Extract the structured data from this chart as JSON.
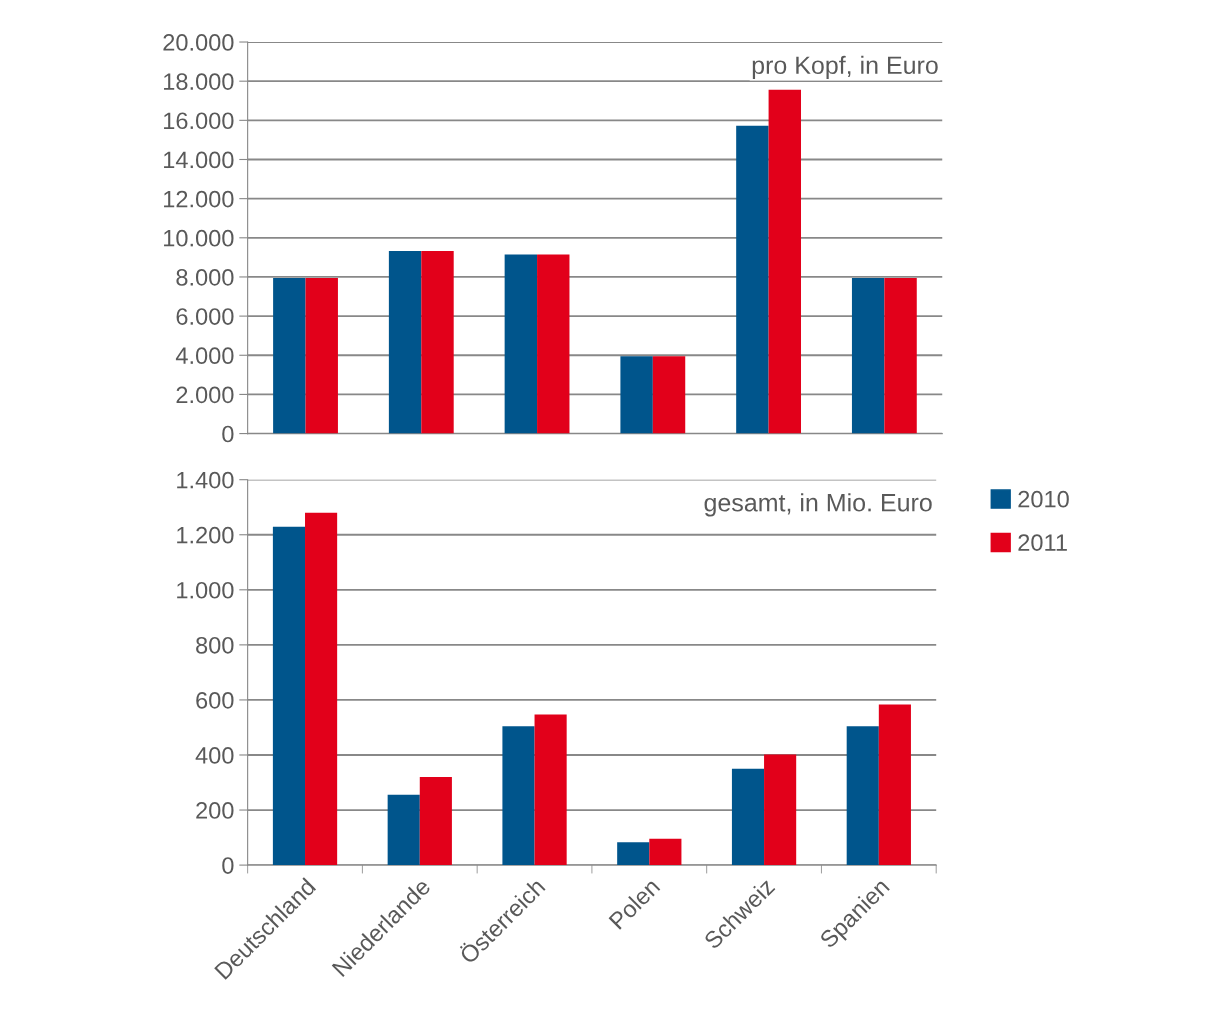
{
  "chart_data": [
    {
      "type": "bar",
      "categories": [
        null,
        null,
        null,
        null,
        null,
        null
      ],
      "series": [
        {
          "name": "2010",
          "color": "#00558c",
          "values": [
            7950,
            9330,
            9150,
            3950,
            15720,
            7950
          ]
        },
        {
          "name": "2011",
          "color": "#e2001a",
          "values": [
            7950,
            9330,
            9150,
            3950,
            17560,
            7950
          ]
        }
      ],
      "annotations": [
        "pro Kopf, in Euro"
      ],
      "ylim": [
        0,
        20000
      ],
      "yticks": [
        0,
        {
          "value": 2000,
          "label": "2.000"
        },
        {
          "value": 4000,
          "label": "4.000"
        },
        {
          "value": 6000,
          "label": "6.000"
        },
        {
          "value": 8000,
          "label": "8.000"
        },
        {
          "value": 10000,
          "label": "10.000"
        },
        {
          "value": 12000,
          "label": "12.000"
        },
        {
          "value": 14000,
          "label": "14.000"
        },
        {
          "value": 16000,
          "label": "16.000"
        },
        {
          "value": 18000,
          "label": "18.000"
        },
        {
          "value": 20000,
          "label": "20.000"
        }
      ],
      "grid": "y",
      "tick_labels": "y",
      "legend": "bottom right"
    },
    {
      "type": "bar",
      "categories": [
        "Deutschland",
        "Niederlande",
        "Österreich",
        "Polen",
        "Schweiz",
        "Spanien"
      ],
      "series": [
        {
          "name": "2010",
          "color": "#00558c",
          "values": [
            1229,
            256,
            504,
            83,
            350,
            504
          ]
        },
        {
          "name": "2011",
          "color": "#e2001a",
          "values": [
            1280,
            320,
            547,
            96,
            402,
            583
          ]
        }
      ],
      "annotations": [
        "gesamt, in Mio. Euro"
      ],
      "ylim": [
        0,
        1400
      ],
      "yticks": [
        0,
        200,
        400,
        600,
        800,
        {
          "value": 1000,
          "label": "1.000"
        },
        {
          "value": 1200,
          "label": "1.200"
        },
        {
          "value": 1400,
          "label": "1.400"
        }
      ],
      "grid": "y"
    }
  ]
}
